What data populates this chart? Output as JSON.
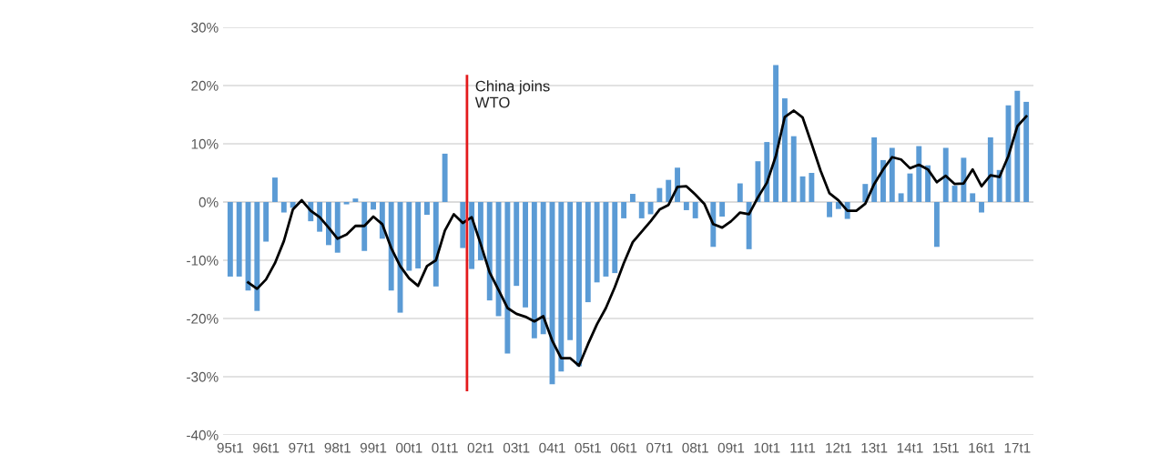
{
  "chart_data": {
    "type": "bar",
    "categories": [
      "95t1",
      null,
      null,
      null,
      "96t1",
      null,
      null,
      null,
      "97t1",
      null,
      null,
      null,
      "98t1",
      null,
      null,
      null,
      "99t1",
      null,
      null,
      null,
      "00t1",
      null,
      null,
      null,
      "01t1",
      null,
      null,
      null,
      "02t1",
      null,
      null,
      null,
      "03t1",
      null,
      null,
      null,
      "04t1",
      null,
      null,
      null,
      "05t1",
      null,
      null,
      null,
      "06t1",
      null,
      null,
      null,
      "07t1",
      null,
      null,
      null,
      "08t1",
      null,
      null,
      null,
      "09t1",
      null,
      null,
      null,
      "10t1",
      null,
      null,
      null,
      "11t1",
      null,
      null,
      null,
      "12t1",
      null,
      null,
      null,
      "13t1",
      null,
      null,
      null,
      "14t1",
      null,
      null,
      null,
      "15t1",
      null,
      null,
      null,
      "16t1",
      null,
      null,
      null,
      "17t1",
      null
    ],
    "series": [
      {
        "color": "#5b9bd5",
        "values": [
          -12.8,
          -12.8,
          -15.2,
          -18.7,
          -6.8,
          4.2,
          -1.8,
          -1.0,
          null,
          -3.3,
          -5.1,
          -7.4,
          -8.7,
          -0.4,
          0.6,
          -8.4,
          -1.3,
          -6.3,
          -15.2,
          -19.0,
          -11.8,
          -11.4,
          -2.2,
          -14.5,
          8.3,
          0,
          -7.9,
          -11.5,
          -10.0,
          -16.9,
          -19.6,
          -26.0,
          -14.4,
          -18.1,
          -23.4,
          -22.7,
          -31.3,
          -29.1,
          -23.7,
          -28.2,
          -17.2,
          -13.8,
          -12.8,
          -12.2,
          -2.8,
          1.4,
          -2.8,
          -2.1,
          2.4,
          3.8,
          5.9,
          -1.4,
          -2.8,
          null,
          -7.7,
          -2.5,
          0,
          3.2,
          -8.1,
          7.0,
          10.3,
          23.5,
          17.8,
          11.3,
          4.4,
          5.0,
          0,
          -2.6,
          -1.2,
          -2.9,
          0,
          3.1,
          11.1,
          7.2,
          9.3,
          1.5,
          4.9,
          9.6,
          6.3,
          -7.7,
          9.3,
          2.8,
          7.6,
          1.5,
          -1.8,
          11.1,
          5.5,
          16.6,
          19.1,
          17.2
        ]
      },
      {
        "type": "line",
        "color": "#000000",
        "values": [
          null,
          null,
          -13.8,
          -14.9,
          -13.3,
          -10.5,
          -6.7,
          -1.3,
          0.3,
          -1.5,
          -2.6,
          -4.4,
          -6.3,
          -5.6,
          -4.1,
          -4.1,
          -2.5,
          -3.8,
          -7.9,
          -11.0,
          -13.1,
          -14.4,
          -11.0,
          -10.0,
          -4.9,
          -2.1,
          -3.6,
          -2.6,
          -7.2,
          -12.1,
          -15.1,
          -18.2,
          -19.2,
          -19.7,
          -20.5,
          -19.6,
          -23.8,
          -26.8,
          -26.8,
          -28.1,
          -24.4,
          -21.0,
          -18.2,
          -14.6,
          -10.5,
          -6.9,
          -5.1,
          -3.3,
          -1.3,
          -0.5,
          2.6,
          2.7,
          1.3,
          -0.3,
          -3.8,
          -4.4,
          -3.3,
          -1.8,
          -2.1,
          0.8,
          3.3,
          7.9,
          14.6,
          15.7,
          14.5,
          10.0,
          5.4,
          1.5,
          0.3,
          -1.5,
          -1.5,
          -0.3,
          3.1,
          5.6,
          7.7,
          7.3,
          5.8,
          6.4,
          5.6,
          3.4,
          4.5,
          3.1,
          3.2,
          5.6,
          2.7,
          4.6,
          4.3,
          7.9,
          13.0,
          14.7
        ]
      }
    ],
    "ylim": [
      -40,
      30
    ],
    "yticks": [
      {
        "value": -40,
        "label": "-40%"
      },
      {
        "value": -30,
        "label": "-30%"
      },
      {
        "value": -20,
        "label": "-20%"
      },
      {
        "value": -10,
        "label": "-10%"
      },
      {
        "value": 0,
        "label": "0%"
      },
      {
        "value": 10,
        "label": "10%"
      },
      {
        "value": 20,
        "label": "20%"
      },
      {
        "value": 30,
        "label": "30%"
      }
    ],
    "grid": "y",
    "annotations": [
      "China joins\nWTO"
    ]
  }
}
